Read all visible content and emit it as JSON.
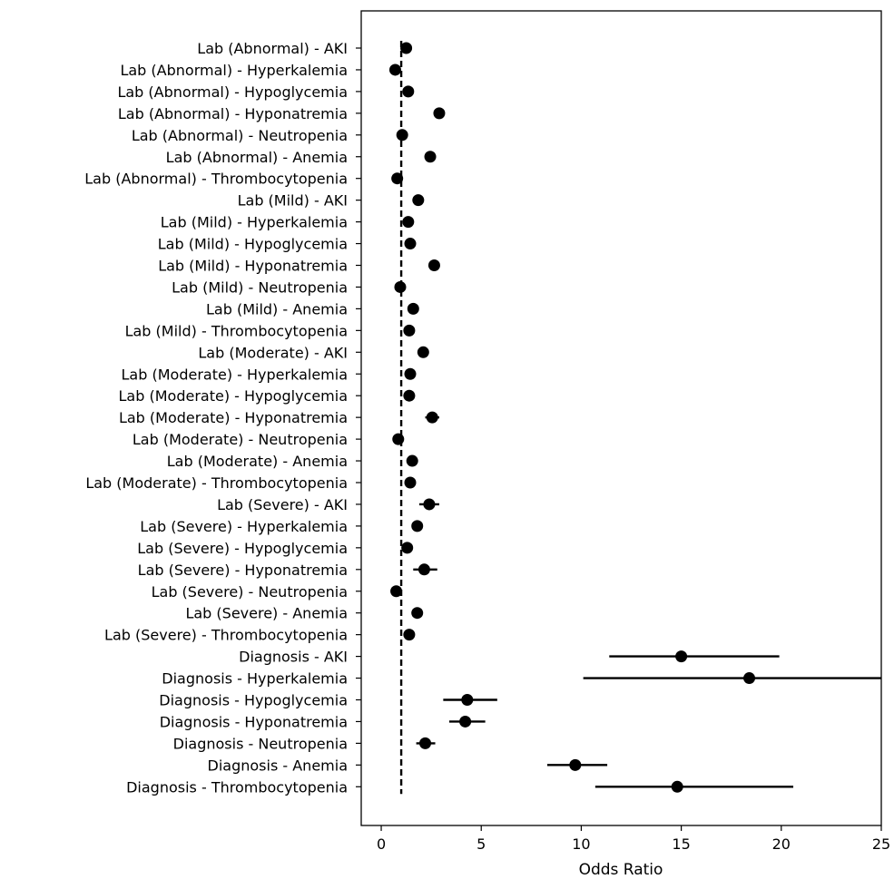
{
  "chart_data": {
    "type": "forest_plot",
    "xlabel": "Odds Ratio",
    "xlim": [
      -1,
      25
    ],
    "x_ticks": [
      0,
      5,
      10,
      15,
      20,
      25
    ],
    "reference_line": 1,
    "reference_line_style": "dashed",
    "marker_color": "#000000",
    "categories": [
      "Lab (Abnormal) - AKI",
      "Lab (Abnormal) - Hyperkalemia",
      "Lab (Abnormal) - Hypoglycemia",
      "Lab (Abnormal) - Hyponatremia",
      "Lab (Abnormal) - Neutropenia",
      "Lab (Abnormal) - Anemia",
      "Lab (Abnormal) - Thrombocytopenia",
      "Lab (Mild) - AKI",
      "Lab (Mild) - Hyperkalemia",
      "Lab (Mild) - Hypoglycemia",
      "Lab (Mild) - Hyponatremia",
      "Lab (Mild) - Neutropenia",
      "Lab (Mild) - Anemia",
      "Lab (Mild) - Thrombocytopenia",
      "Lab (Moderate) - AKI",
      "Lab (Moderate) - Hyperkalemia",
      "Lab (Moderate) - Hypoglycemia",
      "Lab (Moderate) - Hyponatremia",
      "Lab (Moderate) - Neutropenia",
      "Lab (Moderate) - Anemia",
      "Lab (Moderate) - Thrombocytopenia",
      "Lab (Severe) - AKI",
      "Lab (Severe) - Hyperkalemia",
      "Lab (Severe) - Hypoglycemia",
      "Lab (Severe) - Hyponatremia",
      "Lab (Severe) - Neutropenia",
      "Lab (Severe) - Anemia",
      "Lab (Severe) - Thrombocytopenia",
      "Diagnosis - AKI",
      "Diagnosis - Hyperkalemia",
      "Diagnosis - Hypoglycemia",
      "Diagnosis - Hyponatremia",
      "Diagnosis - Neutropenia",
      "Diagnosis - Anemia",
      "Diagnosis - Thrombocytopenia"
    ],
    "odds_ratio": [
      1.25,
      0.7,
      1.35,
      2.9,
      1.05,
      2.45,
      0.8,
      1.85,
      1.35,
      1.45,
      2.65,
      0.95,
      1.6,
      1.4,
      2.1,
      1.45,
      1.4,
      2.55,
      0.85,
      1.55,
      1.45,
      2.4,
      1.8,
      1.3,
      2.15,
      0.75,
      1.8,
      1.4,
      15.0,
      18.4,
      4.3,
      4.2,
      2.2,
      9.7,
      14.8
    ],
    "ci_lower": [
      1.2,
      0.65,
      1.3,
      2.8,
      1.0,
      2.35,
      0.75,
      1.75,
      1.3,
      1.4,
      2.55,
      0.9,
      1.5,
      1.3,
      1.9,
      1.35,
      1.3,
      2.2,
      0.75,
      1.4,
      1.3,
      1.9,
      1.6,
      1.1,
      1.6,
      0.6,
      1.65,
      1.25,
      11.4,
      10.1,
      3.1,
      3.4,
      1.75,
      8.3,
      10.7
    ],
    "ci_upper": [
      1.3,
      0.75,
      1.4,
      3.0,
      1.1,
      2.55,
      0.85,
      1.95,
      1.4,
      1.5,
      2.75,
      1.0,
      1.7,
      1.5,
      2.3,
      1.55,
      1.5,
      2.9,
      0.95,
      1.7,
      1.6,
      2.9,
      2.0,
      1.5,
      2.8,
      0.9,
      1.95,
      1.55,
      19.9,
      25.5,
      5.8,
      5.2,
      2.7,
      11.3,
      20.6
    ]
  }
}
